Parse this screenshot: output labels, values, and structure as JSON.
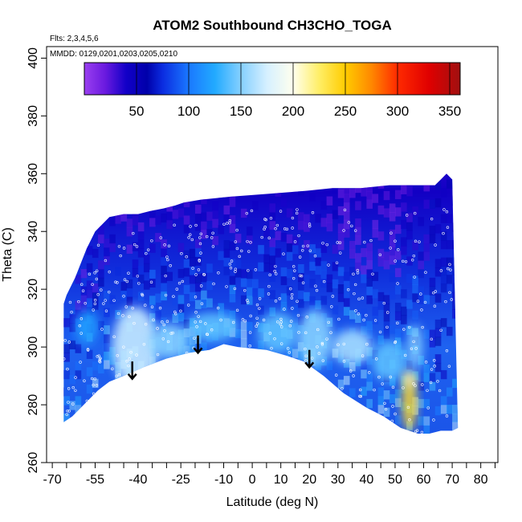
{
  "chart_data": {
    "type": "heatmap",
    "title": "ATOM2 Southbound CH3CHO_TOGA",
    "annotations": {
      "flights": "Flts: 2,3,4,5,6",
      "dates": "MMDD: 0129,0201,0203,0205,0210"
    },
    "xlabel": "Latitude (deg N)",
    "ylabel": "Theta (C)",
    "xlim": [
      -72,
      86
    ],
    "ylim": [
      260,
      404
    ],
    "x_ticks": [
      -70,
      -55,
      -40,
      -25,
      -10,
      0,
      10,
      20,
      30,
      40,
      50,
      60,
      70,
      80
    ],
    "x_minor_ticks": [
      -65,
      -60,
      -50,
      -45,
      -35,
      -30,
      -20,
      -15,
      -5,
      5,
      15,
      25,
      35,
      45,
      55,
      65,
      75,
      85
    ],
    "y_ticks": [
      260,
      280,
      300,
      320,
      340,
      360,
      380,
      400
    ],
    "colorbar": {
      "ticks": [
        50,
        100,
        150,
        200,
        250,
        300,
        350
      ],
      "range": [
        0,
        360
      ],
      "stops": [
        {
          "v": 0,
          "c": "#9a3ff0"
        },
        {
          "v": 20,
          "c": "#6a1adf"
        },
        {
          "v": 40,
          "c": "#1200c8"
        },
        {
          "v": 60,
          "c": "#0000aa"
        },
        {
          "v": 75,
          "c": "#0b2ce0"
        },
        {
          "v": 100,
          "c": "#1a78ff"
        },
        {
          "v": 125,
          "c": "#22aaff"
        },
        {
          "v": 150,
          "c": "#85d0ff"
        },
        {
          "v": 175,
          "c": "#d6f0ff"
        },
        {
          "v": 200,
          "c": "#ffffee"
        },
        {
          "v": 225,
          "c": "#ffee66"
        },
        {
          "v": 250,
          "c": "#ffcc00"
        },
        {
          "v": 275,
          "c": "#ff8800"
        },
        {
          "v": 300,
          "c": "#ff2a00"
        },
        {
          "v": 330,
          "c": "#e00000"
        },
        {
          "v": 360,
          "c": "#a01010"
        }
      ]
    },
    "boundary_top": [
      [
        -66,
        315
      ],
      [
        -65,
        318
      ],
      [
        -62,
        324
      ],
      [
        -58,
        334
      ],
      [
        -55,
        340
      ],
      [
        -50,
        345
      ],
      [
        -45,
        346
      ],
      [
        -40,
        346
      ],
      [
        -36,
        347
      ],
      [
        -31,
        348
      ],
      [
        -27,
        349
      ],
      [
        -24,
        350
      ],
      [
        -18,
        351
      ],
      [
        -8,
        352
      ],
      [
        5,
        353
      ],
      [
        18,
        354
      ],
      [
        28,
        355
      ],
      [
        38,
        355
      ],
      [
        48,
        356
      ],
      [
        56,
        356
      ],
      [
        64,
        356
      ],
      [
        66,
        358
      ],
      [
        68,
        360
      ],
      [
        70,
        358
      ]
    ],
    "boundary_bottom": [
      [
        -66,
        274
      ],
      [
        -63,
        276
      ],
      [
        -58,
        281
      ],
      [
        -54,
        285
      ],
      [
        -50,
        288
      ],
      [
        -45,
        290
      ],
      [
        -38,
        293
      ],
      [
        -30,
        296
      ],
      [
        -22,
        298
      ],
      [
        -15,
        299
      ],
      [
        -10,
        301
      ],
      [
        -5,
        300
      ],
      [
        5,
        299
      ],
      [
        12,
        297
      ],
      [
        18,
        295
      ],
      [
        25,
        290
      ],
      [
        32,
        284
      ],
      [
        40,
        279
      ],
      [
        46,
        276
      ],
      [
        52,
        272
      ],
      [
        58,
        270
      ],
      [
        62,
        270
      ],
      [
        66,
        271
      ],
      [
        70,
        271
      ],
      [
        72,
        272
      ]
    ],
    "features": [
      {
        "lat": -41,
        "theta": 300,
        "rx": 8,
        "ry": 14,
        "value": 170
      },
      {
        "lat": -29,
        "theta": 302,
        "rx": 7,
        "ry": 6,
        "value": 150
      },
      {
        "lat": -14,
        "theta": 307,
        "rx": 9,
        "ry": 5,
        "value": 140
      },
      {
        "lat": 9,
        "theta": 305,
        "rx": 7,
        "ry": 7,
        "value": 140
      },
      {
        "lat": 22,
        "theta": 303,
        "rx": 6,
        "ry": 10,
        "value": 150
      },
      {
        "lat": 35,
        "theta": 300,
        "rx": 7,
        "ry": 6,
        "value": 160
      },
      {
        "lat": 48,
        "theta": 295,
        "rx": 6,
        "ry": 7,
        "value": 140
      },
      {
        "lat": 55,
        "theta": 281,
        "rx": 2.5,
        "ry": 10,
        "value": 240
      },
      {
        "lat": 55,
        "theta": 289,
        "rx": 2,
        "ry": 3,
        "value": 210
      },
      {
        "lat": 57,
        "theta": 300,
        "rx": 2.5,
        "ry": 8,
        "value": 150
      },
      {
        "lat": -58,
        "theta": 307,
        "rx": 4,
        "ry": 6,
        "value": 120
      }
    ],
    "arrows": [
      {
        "lat": -42,
        "theta_top": 295,
        "theta_bottom": 289
      },
      {
        "lat": -19,
        "theta_top": 304,
        "theta_bottom": 298
      },
      {
        "lat": 20,
        "theta_top": 299,
        "theta_bottom": 293
      }
    ]
  }
}
